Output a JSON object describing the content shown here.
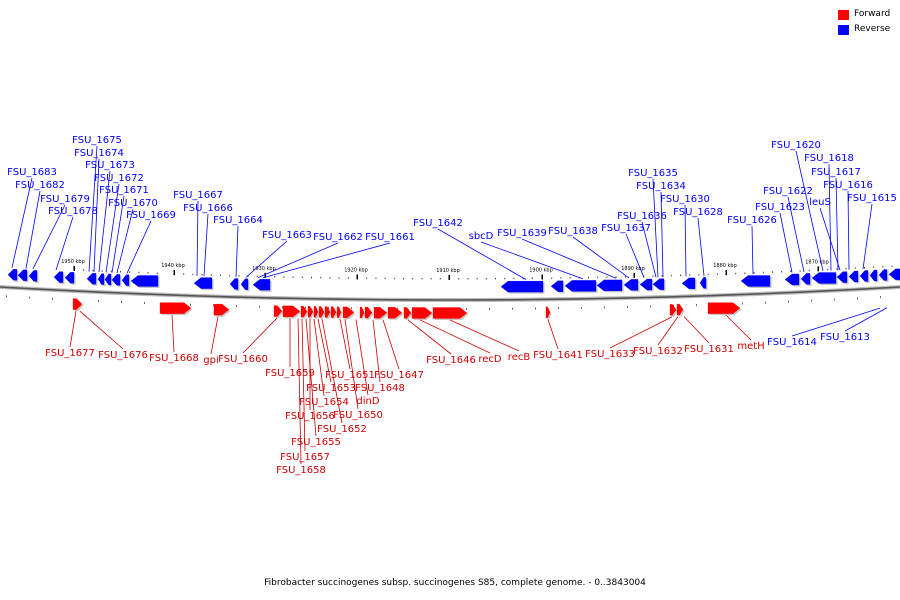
{
  "legend": {
    "forward_label": "Forward",
    "reverse_label": "Reverse",
    "forward_color": "#ff0000",
    "reverse_color": "#0000ff"
  },
  "caption": "Fibrobacter succinogenes subsp. succinogenes S85, complete genome. - 0..3843004",
  "ruler": {
    "unit": "kbp",
    "ticks": [
      {
        "value": 1950,
        "label": "1950 kbp"
      },
      {
        "value": 1940,
        "label": "1940 kbp"
      },
      {
        "value": 1930,
        "label": "1930 kbp"
      },
      {
        "value": 1920,
        "label": "1920 kbp"
      },
      {
        "value": 1910,
        "label": "1910 kbp"
      },
      {
        "value": 1900,
        "label": "1900 kbp"
      },
      {
        "value": 1890,
        "label": "1890 kbp"
      },
      {
        "value": 1880,
        "label": "1880 kbp"
      },
      {
        "value": 1870,
        "label": "1870 kbp"
      }
    ]
  },
  "reverse_genes": [
    "FSU_1683",
    "FSU_1682",
    "FSU_1679",
    "FSU_1678",
    "FSU_1675",
    "FSU_1674",
    "FSU_1673",
    "FSU_1672",
    "FSU_1671",
    "FSU_1670",
    "FSU_1669",
    "FSU_1667",
    "FSU_1666",
    "FSU_1664",
    "FSU_1663",
    "FSU_1662",
    "FSU_1661",
    "FSU_1642",
    "sbcD",
    "FSU_1639",
    "FSU_1638",
    "FSU_1637",
    "FSU_1636",
    "FSU_1635",
    "FSU_1634",
    "FSU_1630",
    "FSU_1628",
    "FSU_1626",
    "FSU_1623",
    "FSU_1622",
    "FSU_1620",
    "leuS",
    "FSU_1618",
    "FSU_1617",
    "FSU_1616",
    "FSU_1615",
    "FSU_1614",
    "FSU_1613"
  ],
  "forward_genes": [
    "FSU_1677",
    "FSU_1676",
    "FSU_1668",
    "gpi",
    "FSU_1660",
    "FSU_1659",
    "FSU_1658",
    "FSU_1657",
    "FSU_1655",
    "FSU_1656",
    "FSU_1654",
    "FSU_1653",
    "FSU_1652",
    "FSU_1651",
    "FSU_1650",
    "dinD",
    "FSU_1648",
    "FSU_1647",
    "FSU_1646",
    "recD",
    "recB",
    "FSU_1641",
    "FSU_1633",
    "FSU_1632",
    "FSU_1631",
    "metH"
  ]
}
